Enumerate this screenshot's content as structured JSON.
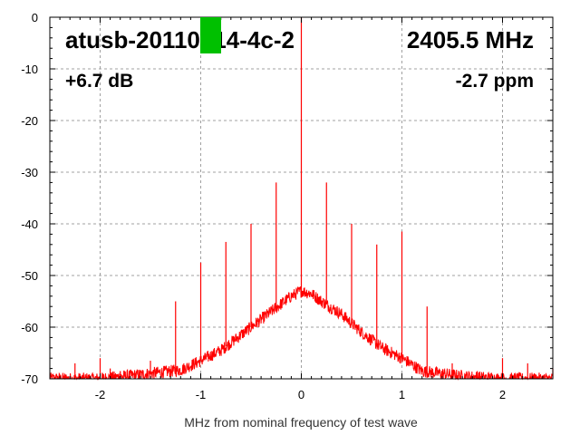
{
  "chart_data": {
    "type": "line",
    "title": "",
    "xlabel": "MHz from nominal frequency of test wave",
    "ylabel": "",
    "xlim": [
      -2.5,
      2.5
    ],
    "ylim": [
      -70,
      0
    ],
    "grid": true,
    "x_ticks": [
      -2,
      -1,
      0,
      1,
      2
    ],
    "x_tick_labels": [
      "-2",
      "-1",
      "0",
      "1",
      "2"
    ],
    "y_ticks": [
      0,
      -10,
      -20,
      -30,
      -40,
      -50,
      -60,
      -70
    ],
    "y_tick_labels": [
      "0",
      "-10",
      "-20",
      "-30",
      "-40",
      "-50",
      "-60",
      "-70"
    ],
    "annotations": {
      "device": "atusb-20110214-4c-2",
      "frequency": "2405.5 MHz",
      "gain": "+6.7 dB",
      "offset": "-2.7 ppm"
    },
    "colors": {
      "trace": "#ff0000",
      "grid": "#a0a0a0",
      "marker": "#00c000"
    },
    "series": [
      {
        "style": "noise-floor",
        "x": [
          -2.5,
          -2.0,
          -1.6,
          -1.2,
          -1.0,
          -0.8,
          -0.6,
          -0.4,
          -0.2,
          -0.1,
          0.0,
          0.1,
          0.2,
          0.4,
          0.6,
          0.8,
          1.0,
          1.2,
          1.6,
          2.0,
          2.5
        ],
        "y": [
          -70,
          -70,
          -69.2,
          -68.3,
          -66.5,
          -64.5,
          -61.5,
          -58.5,
          -55.5,
          -54.0,
          -53.0,
          -53.5,
          -55.0,
          -57.5,
          -61.0,
          -64.0,
          -66.0,
          -68.5,
          -69.5,
          -70,
          -70
        ]
      },
      {
        "style": "spurs",
        "x": [
          -2.25,
          -2.0,
          -1.9,
          -1.8,
          -1.5,
          -1.25,
          -1.0,
          -0.75,
          -0.5,
          -0.25,
          0.0,
          0.25,
          0.5,
          0.75,
          1.0,
          1.25,
          1.5,
          1.75,
          2.0,
          2.25,
          2.5
        ],
        "y": [
          -67,
          -66,
          -68,
          -68.5,
          -66.5,
          -55,
          -47.5,
          -43.5,
          -40,
          -32,
          0,
          -32,
          -40,
          -44,
          -41.5,
          -56,
          -67,
          -68.5,
          -66,
          -67,
          -68
        ]
      }
    ]
  }
}
